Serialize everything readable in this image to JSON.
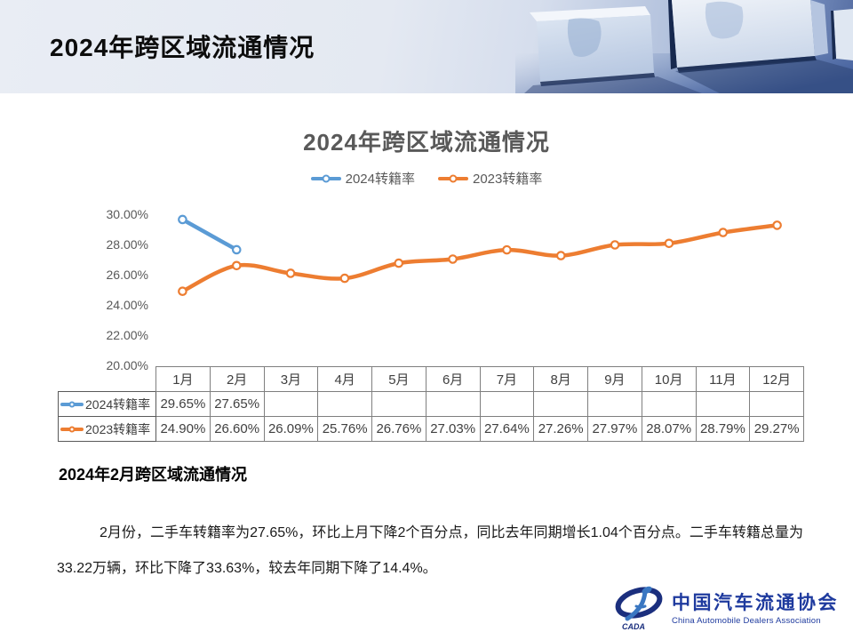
{
  "header": {
    "title": "2024年跨区域流通情况"
  },
  "chart_data": {
    "type": "line",
    "title": "2024年跨区域流通情况",
    "categories": [
      "1月",
      "2月",
      "3月",
      "4月",
      "5月",
      "6月",
      "7月",
      "8月",
      "9月",
      "10月",
      "11月",
      "12月"
    ],
    "series": [
      {
        "name": "2024转籍率",
        "color": "#5B9BD5",
        "values": [
          29.65,
          27.65,
          null,
          null,
          null,
          null,
          null,
          null,
          null,
          null,
          null,
          null
        ]
      },
      {
        "name": "2023转籍率",
        "color": "#ED7D31",
        "values": [
          24.9,
          26.6,
          26.09,
          25.76,
          26.76,
          27.03,
          27.64,
          27.26,
          27.97,
          28.07,
          28.79,
          29.27
        ]
      }
    ],
    "ylim": [
      20,
      30
    ],
    "ytick_values": [
      20,
      22,
      24,
      26,
      28,
      30
    ],
    "ytick_labels": [
      "20.00%",
      "22.00%",
      "24.00%",
      "26.00%",
      "28.00%",
      "30.00%"
    ],
    "grid": false,
    "legend_position": "top",
    "smooth": true,
    "value_suffix": "%"
  },
  "body": {
    "section_title": "2024年2月跨区域流通情况",
    "paragraph": "2月份，二手车转籍率为27.65%，环比上月下降2个百分点，同比去年同期增长1.04个百分点。二手车转籍总量为33.22万辆，环比下降了33.63%，较去年同期下降了14.4%。"
  },
  "footer": {
    "logo_cn": "中国汽车流通协会",
    "logo_en": "China Automobile Dealers Association",
    "logo_mark": "CADA",
    "logo_color": "#1e3a9e"
  }
}
